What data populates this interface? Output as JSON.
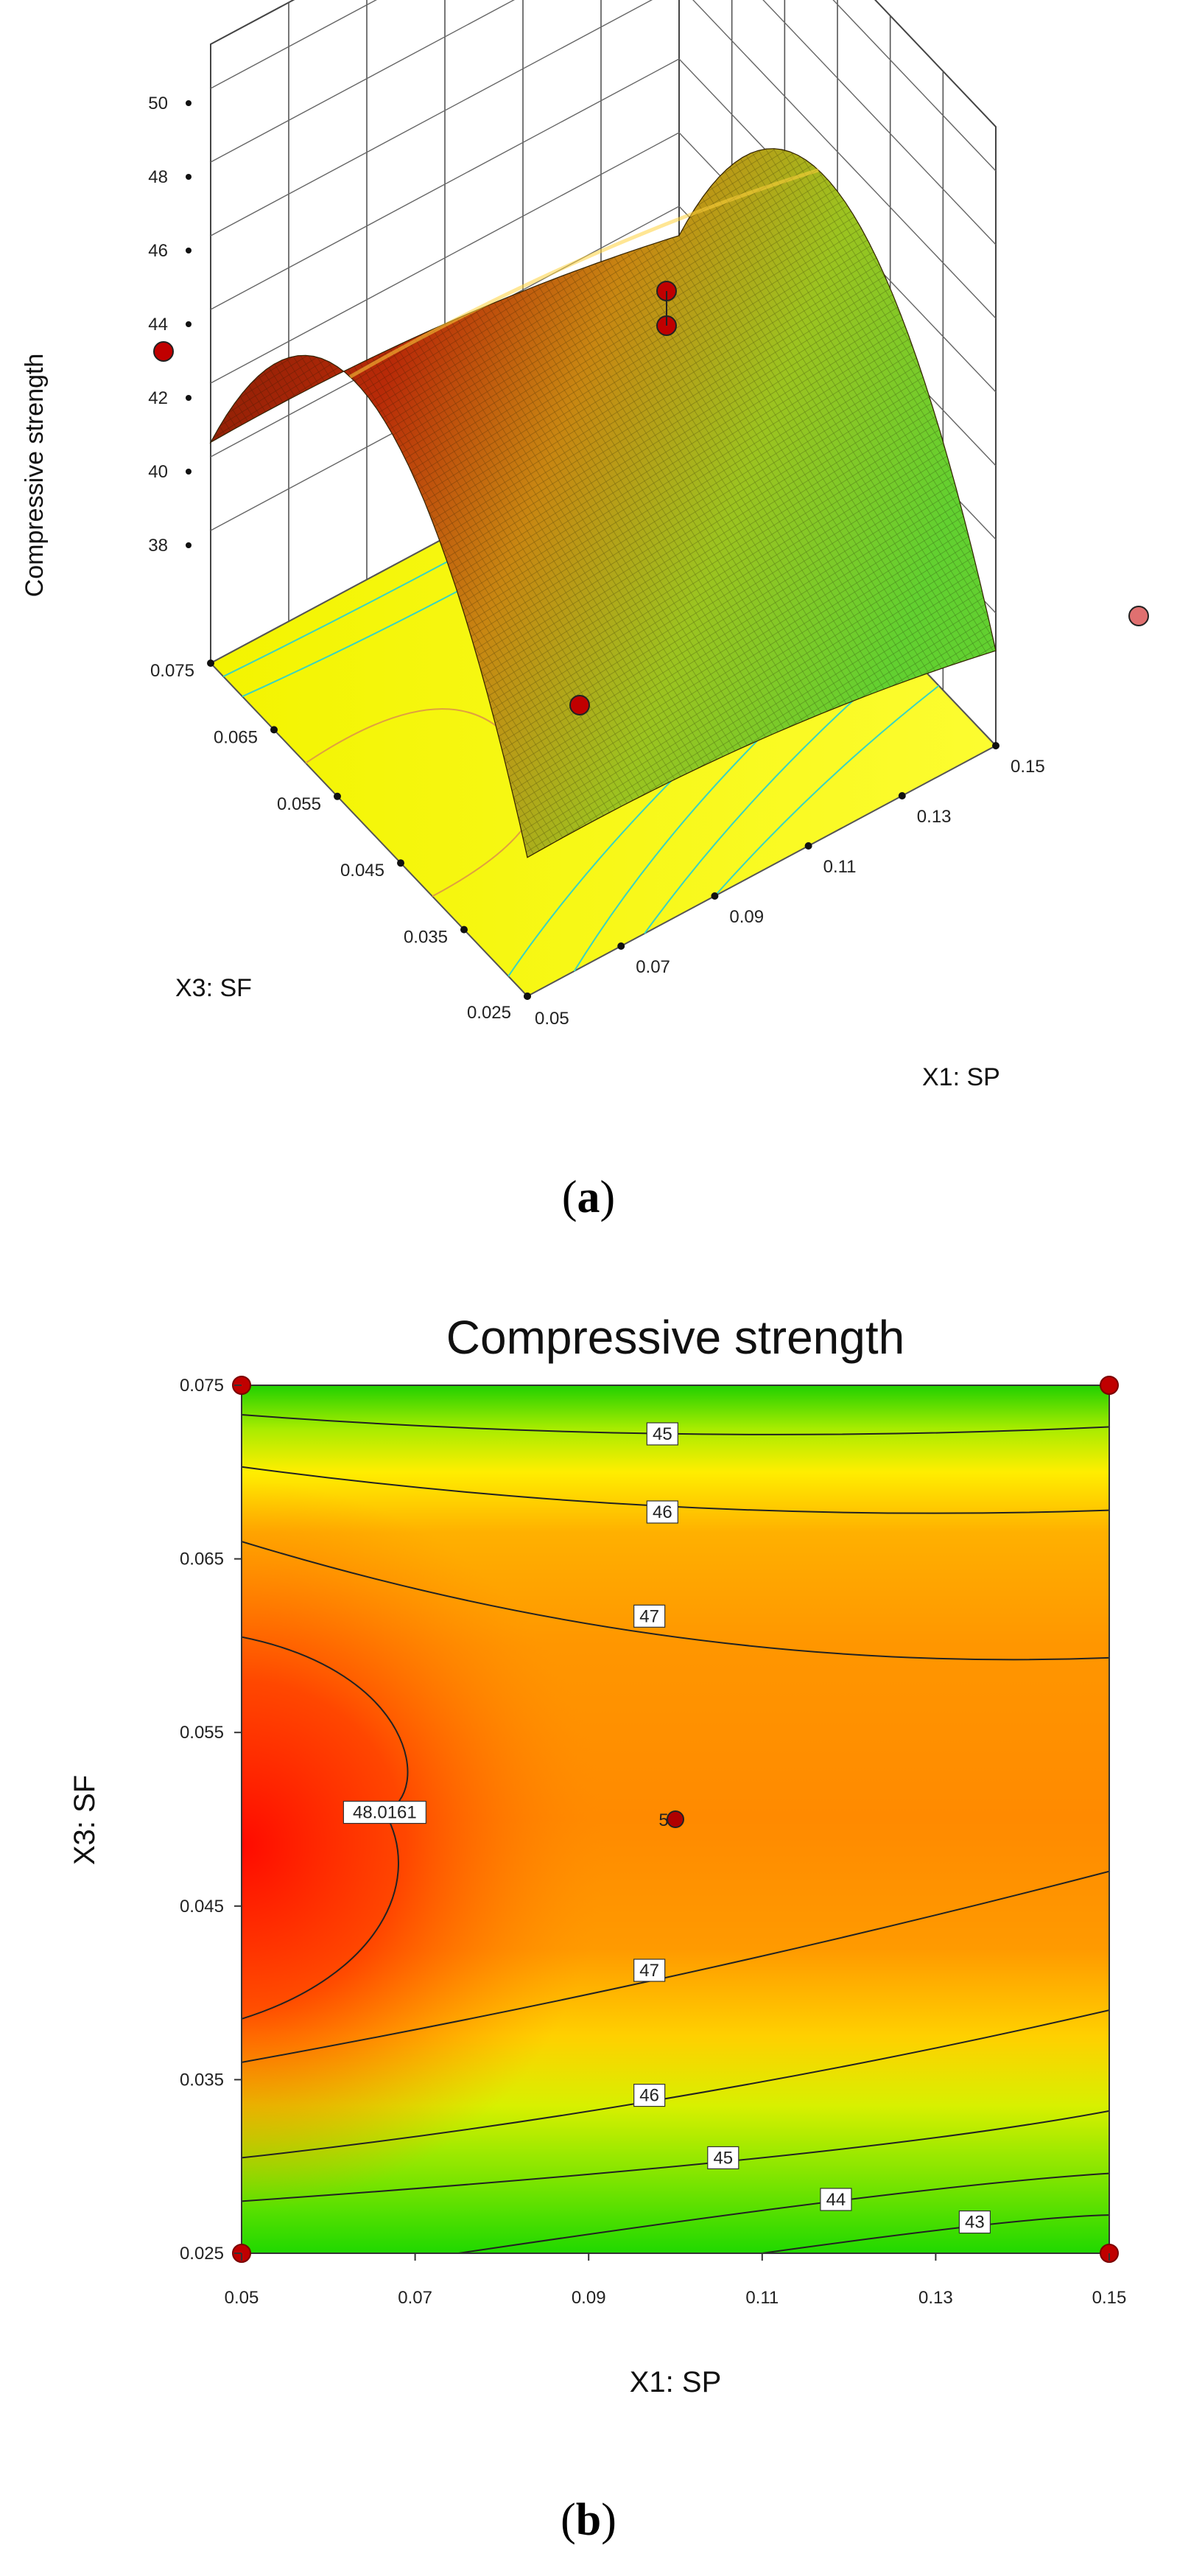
{
  "chart_data": [
    {
      "type": "surface",
      "panel_label": "(a)",
      "caption": {
        "open": "(",
        "letter": "a",
        "close": ")"
      },
      "zlabel": "Compressive strength",
      "xlabel": "X1: SP",
      "ylabel": "X3: SF",
      "x_ticks": [
        "0.05",
        "0.07",
        "0.09",
        "0.11",
        "0.13",
        "0.15"
      ],
      "y_ticks": [
        "0.025",
        "0.035",
        "0.045",
        "0.055",
        "0.065",
        "0.075"
      ],
      "z_ticks": [
        "38",
        "40",
        "42",
        "44",
        "46",
        "48",
        "50"
      ],
      "xlim": [
        0.05,
        0.15
      ],
      "ylim": [
        0.025,
        0.075
      ],
      "zlim": [
        36,
        50
      ],
      "colormap": [
        "#00cc00",
        "#9ccc1a",
        "#c4a000",
        "#c06000",
        "#b81a00"
      ],
      "design_points": [
        {
          "x": 0.05,
          "y": 0.075,
          "z": 45.6
        },
        {
          "x": 0.15,
          "y": 0.075,
          "z": 37.7
        },
        {
          "x": 0.05,
          "y": 0.025,
          "z": 38.0
        },
        {
          "x": 0.1,
          "y": 0.05,
          "z": 47.5
        },
        {
          "x": 0.1,
          "y": 0.05,
          "z": 47.3
        },
        {
          "x": 0.1,
          "y": 0.05,
          "z": 46.3
        }
      ]
    },
    {
      "type": "contour",
      "panel_label": "(b)",
      "caption": {
        "open": "(",
        "letter": "b",
        "close": ")"
      },
      "title": "Compressive strength",
      "xlabel": "X1: SP",
      "ylabel": "X3: SF",
      "x_ticks": [
        "0.05",
        "0.07",
        "0.09",
        "0.11",
        "0.13",
        "0.15"
      ],
      "y_ticks": [
        "0.025",
        "0.035",
        "0.045",
        "0.055",
        "0.065",
        "0.075"
      ],
      "xlim": [
        0.05,
        0.15
      ],
      "ylim": [
        0.025,
        0.075
      ],
      "contour_labels": [
        {
          "text": "45",
          "x": 0.0985,
          "y": 0.0722
        },
        {
          "text": "46",
          "x": 0.0985,
          "y": 0.0677
        },
        {
          "text": "47",
          "x": 0.097,
          "y": 0.0617
        },
        {
          "text": "48.0161",
          "x": 0.0665,
          "y": 0.0504
        },
        {
          "text": "47",
          "x": 0.097,
          "y": 0.0413
        },
        {
          "text": "46",
          "x": 0.097,
          "y": 0.0341
        },
        {
          "text": "45",
          "x": 0.1055,
          "y": 0.0305
        },
        {
          "text": "44",
          "x": 0.1185,
          "y": 0.0281
        },
        {
          "text": "43",
          "x": 0.1345,
          "y": 0.0268
        }
      ],
      "center_point": {
        "x": 0.1,
        "y": 0.05,
        "label": "5"
      },
      "corner_points": [
        {
          "x": 0.05,
          "y": 0.075
        },
        {
          "x": 0.15,
          "y": 0.075
        },
        {
          "x": 0.05,
          "y": 0.025
        },
        {
          "x": 0.15,
          "y": 0.025
        }
      ],
      "colormap": [
        "#00dd00",
        "#ccff00",
        "#ffdd00",
        "#ff9900",
        "#ff1100"
      ]
    }
  ]
}
